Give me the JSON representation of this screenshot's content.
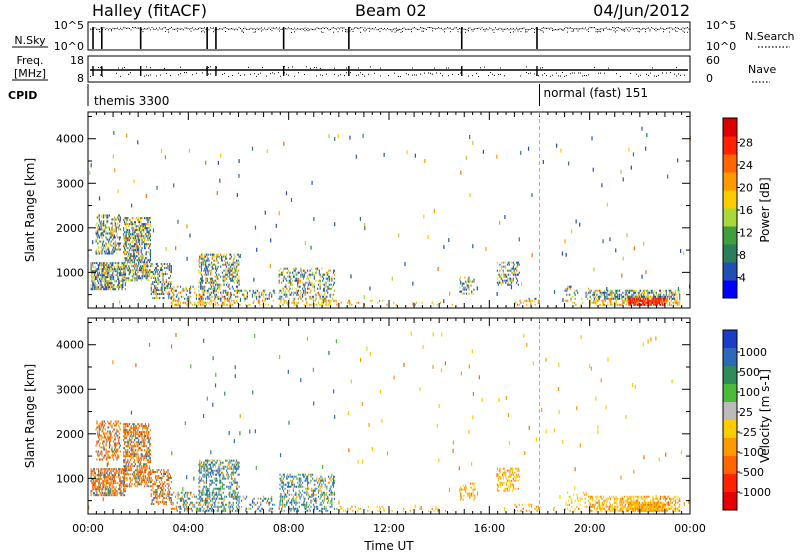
{
  "header": {
    "station": "Halley (fitACF)",
    "beam": "Beam 02",
    "date": "04/Jun/2012"
  },
  "top_panels": {
    "nsky_label": "N.Sky",
    "nsearch_label": "N.Search",
    "nsky_ticks": [
      "10^5",
      "10^0"
    ],
    "nsearch_ticks": [
      "10^5",
      "10^0"
    ],
    "freq_label": "Freq.",
    "freq_unit": "[MHz]",
    "freq_ticks": [
      "18",
      "8"
    ],
    "nave_label": "Nave",
    "nave_ticks": [
      "60",
      "0"
    ],
    "cpid_label": "CPID",
    "cpid_segments": [
      {
        "label": "themis 3300",
        "start_hour": 0
      },
      {
        "label": "normal (fast) 151",
        "start_hour": 18
      }
    ],
    "scan_break_hours": [
      0.2,
      0.55,
      2.1,
      4.75,
      5.1,
      7.8,
      10.4,
      14.9,
      17.9
    ]
  },
  "chart_data": [
    {
      "type": "heatmap",
      "name": "power",
      "ylabel": "Slant Range [km]",
      "xlabel": "",
      "xlim_hours": [
        0,
        24
      ],
      "ylim": [
        200,
        4600
      ],
      "yticks": [
        1000,
        2000,
        3000,
        4000
      ],
      "colorbar": {
        "label": "Power [dB]",
        "ticks": [
          "4",
          "8",
          "12",
          "16",
          "20",
          "24",
          "28"
        ],
        "colors": [
          "#0000ff",
          "#1f4fb4",
          "#2a7f5a",
          "#3f9f3f",
          "#a8d83a",
          "#ffcc00",
          "#ff9900",
          "#ff6600",
          "#ff2200",
          "#dd0000"
        ]
      }
    },
    {
      "type": "heatmap",
      "name": "velocity",
      "ylabel": "Slant Range [km]",
      "xlabel": "Time UT",
      "xlim_hours": [
        0,
        24
      ],
      "ylim": [
        200,
        4600
      ],
      "yticks": [
        1000,
        2000,
        3000,
        4000
      ],
      "xticks": [
        "00:00",
        "04:00",
        "08:00",
        "12:00",
        "16:00",
        "20:00",
        "00:00"
      ],
      "colorbar": {
        "label": "Velocity [m s-1]",
        "ticks": [
          "1000",
          "500",
          "100",
          "25",
          "-25",
          "-100",
          "-500",
          "-1000"
        ],
        "colors": [
          "#1a3cc8",
          "#2a6ab8",
          "#2e8c5a",
          "#4cba3a",
          "#bbbbbb",
          "#ffcc00",
          "#ff9900",
          "#ff6600",
          "#ff2200",
          "#e60000"
        ]
      }
    }
  ]
}
